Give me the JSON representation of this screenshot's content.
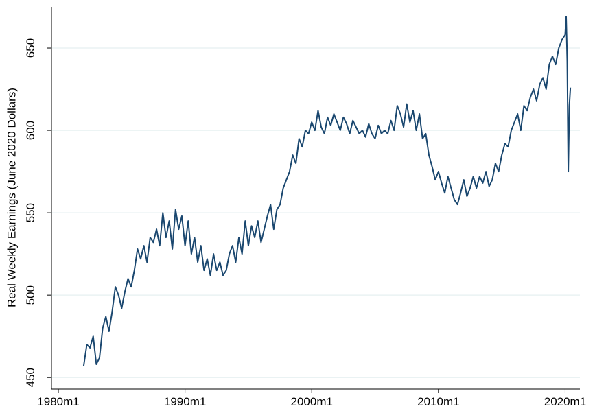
{
  "chart_data": {
    "type": "line",
    "y_label": "Real Weekly Earnings (June 2020 Dollars)",
    "x": [
      264,
      267,
      270,
      273,
      276,
      279,
      282,
      285,
      288,
      291,
      294,
      297,
      300,
      303,
      306,
      309,
      312,
      315,
      318,
      321,
      324,
      327,
      330,
      333,
      336,
      339,
      342,
      345,
      348,
      351,
      354,
      357,
      360,
      363,
      366,
      369,
      372,
      375,
      378,
      381,
      384,
      387,
      390,
      393,
      396,
      399,
      402,
      405,
      408,
      411,
      414,
      417,
      420,
      423,
      426,
      429,
      432,
      435,
      438,
      441,
      444,
      447,
      450,
      453,
      456,
      459,
      462,
      465,
      468,
      471,
      474,
      477,
      480,
      483,
      486,
      489,
      492,
      495,
      498,
      501,
      504,
      507,
      510,
      513,
      516,
      519,
      522,
      525,
      528,
      531,
      534,
      537,
      540,
      543,
      546,
      549,
      552,
      555,
      558,
      561,
      564,
      567,
      570,
      573,
      576,
      579,
      582,
      585,
      588,
      591,
      594,
      597,
      600,
      603,
      606,
      609,
      612,
      615,
      618,
      621,
      624,
      627,
      630,
      633,
      636,
      639,
      642,
      645,
      648,
      651,
      654,
      657,
      660,
      663,
      666,
      669,
      672,
      675,
      678,
      681,
      684,
      687,
      690,
      693,
      696,
      699,
      702,
      705,
      708,
      711,
      714,
      717,
      720,
      721,
      722,
      723,
      724,
      725
    ],
    "series": [
      {
        "color": "#1a476f",
        "values": [
          457,
          470,
          468,
          475,
          458,
          462,
          480,
          487,
          478,
          490,
          505,
          500,
          492,
          502,
          510,
          505,
          515,
          528,
          522,
          530,
          520,
          535,
          532,
          540,
          530,
          550,
          535,
          545,
          528,
          552,
          540,
          548,
          530,
          545,
          525,
          535,
          520,
          530,
          515,
          522,
          512,
          525,
          515,
          520,
          512,
          515,
          525,
          530,
          520,
          535,
          525,
          545,
          530,
          542,
          535,
          545,
          532,
          540,
          548,
          555,
          540,
          552,
          555,
          565,
          570,
          575,
          585,
          580,
          595,
          590,
          600,
          598,
          605,
          600,
          612,
          602,
          598,
          608,
          603,
          610,
          605,
          600,
          608,
          604,
          598,
          606,
          602,
          598,
          600,
          596,
          604,
          598,
          595,
          603,
          598,
          600,
          598,
          606,
          600,
          615,
          610,
          602,
          616,
          605,
          612,
          600,
          610,
          595,
          598,
          585,
          578,
          570,
          575,
          568,
          562,
          572,
          565,
          558,
          555,
          562,
          570,
          560,
          565,
          572,
          565,
          572,
          568,
          575,
          566,
          570,
          580,
          575,
          585,
          592,
          590,
          600,
          605,
          610,
          600,
          615,
          612,
          620,
          625,
          618,
          628,
          632,
          625,
          640,
          645,
          640,
          650,
          655,
          658,
          669,
          642,
          575,
          615,
          626
        ]
      }
    ],
    "xlim": [
      233.5,
      734
    ],
    "xticks": [
      {
        "value": 240,
        "label": "1980m1"
      },
      {
        "value": 360,
        "label": "1990m1"
      },
      {
        "value": 480,
        "label": "2000m1"
      },
      {
        "value": 600,
        "label": "2010m1"
      },
      {
        "value": 720,
        "label": "2020m1"
      }
    ],
    "ylim": [
      443,
      675
    ],
    "yticks": [
      450,
      500,
      550,
      600,
      650
    ],
    "grid": true
  }
}
